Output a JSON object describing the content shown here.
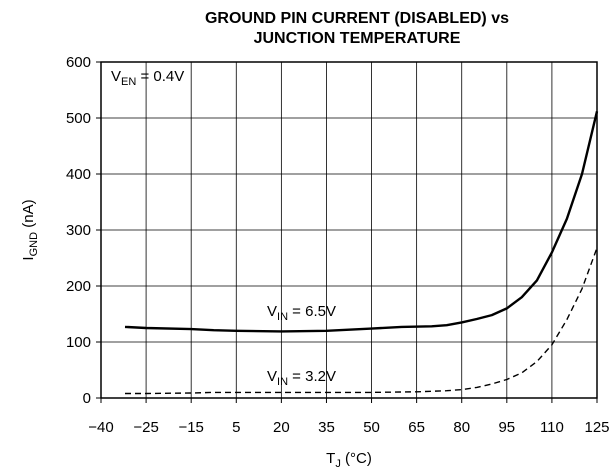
{
  "chart_data": {
    "type": "line",
    "title_line1": "GROUND PIN CURRENT (DISABLED) vs",
    "title_line2": "JUNCTION TEMPERATURE",
    "xlabel": {
      "main": "T",
      "sub": "J",
      "unit": " (°C)"
    },
    "ylabel": {
      "main": "I",
      "sub": "GND",
      "unit": " (nA)"
    },
    "xlim": [
      -40,
      125
    ],
    "ylim": [
      0,
      600
    ],
    "x_ticks": [
      -40,
      -25,
      -15,
      5,
      20,
      35,
      50,
      65,
      80,
      95,
      110,
      125
    ],
    "x_tick_labels": [
      "−40",
      "−25",
      "−15",
      "5",
      "20",
      "35",
      "50",
      "65",
      "80",
      "95",
      "110",
      "125"
    ],
    "y_ticks": [
      0,
      100,
      200,
      300,
      400,
      500,
      600
    ],
    "y_tick_labels": [
      "0",
      "100",
      "200",
      "300",
      "400",
      "500",
      "600"
    ],
    "grid": true,
    "condition": {
      "main": "V",
      "sub": "EN",
      "rest": " = 0.4V"
    },
    "series": [
      {
        "name": "V_IN = 6.5V",
        "label": {
          "main": "V",
          "sub": "IN",
          "rest": " = 6.5V"
        },
        "style": "solid",
        "x": [
          -32,
          -25,
          -15,
          -5,
          5,
          20,
          35,
          50,
          60,
          70,
          75,
          80,
          85,
          90,
          95,
          100,
          105,
          110,
          115,
          120,
          125
        ],
        "y": [
          127,
          125,
          123,
          121,
          120,
          119,
          120,
          124,
          127,
          128,
          130,
          135,
          141,
          148,
          160,
          180,
          210,
          260,
          320,
          400,
          512
        ]
      },
      {
        "name": "V_IN = 3.2V",
        "label": {
          "main": "V",
          "sub": "IN",
          "rest": " = 3.2V"
        },
        "style": "dashed",
        "x": [
          -32,
          -25,
          -15,
          -5,
          5,
          20,
          35,
          50,
          65,
          75,
          80,
          85,
          90,
          95,
          100,
          105,
          110,
          115,
          120,
          125
        ],
        "y": [
          8,
          8,
          9,
          10,
          10,
          10,
          10,
          10,
          11,
          13,
          15,
          19,
          25,
          33,
          45,
          65,
          95,
          140,
          195,
          268
        ]
      }
    ]
  }
}
